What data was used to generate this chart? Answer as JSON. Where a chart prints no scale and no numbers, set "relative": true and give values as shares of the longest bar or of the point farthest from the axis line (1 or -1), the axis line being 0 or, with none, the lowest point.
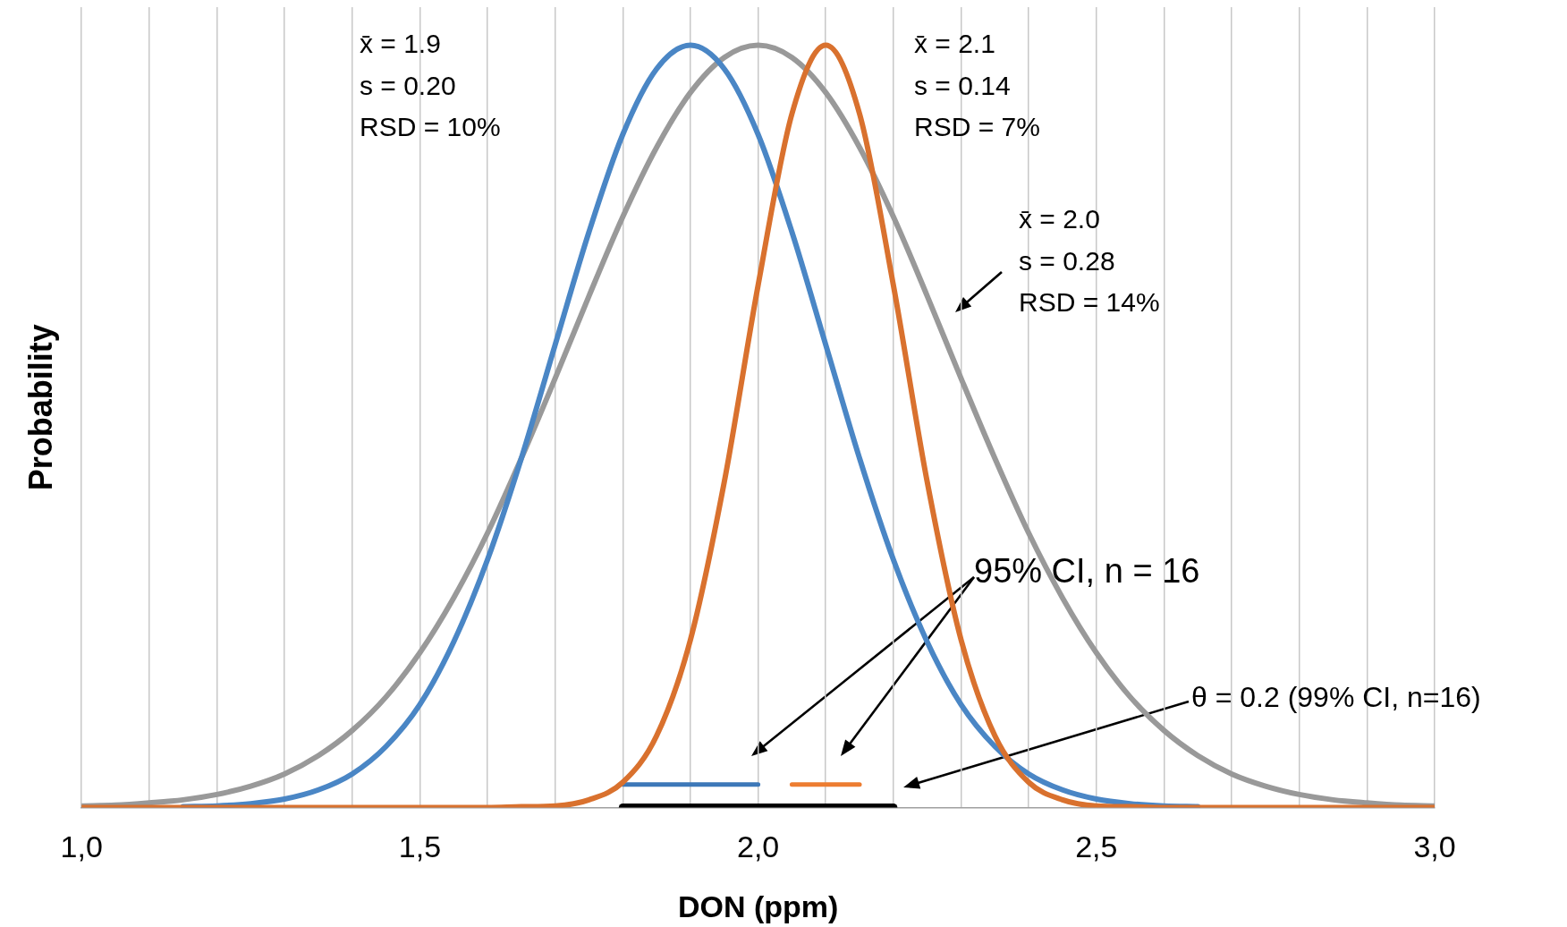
{
  "chart_data": {
    "type": "line",
    "relative": true,
    "xlabel": "DON (ppm)",
    "ylabel": "Probability",
    "xlim": [
      1,
      3
    ],
    "xticks": [
      {
        "value": 1,
        "label": "1,0"
      },
      {
        "value": 1.1,
        "label": null
      },
      {
        "value": 1.2,
        "label": null
      },
      {
        "value": 1.3,
        "label": null
      },
      {
        "value": 1.4,
        "label": null
      },
      {
        "value": 1.5,
        "label": "1,5"
      },
      {
        "value": 1.6,
        "label": null
      },
      {
        "value": 1.7,
        "label": null
      },
      {
        "value": 1.8,
        "label": null
      },
      {
        "value": 1.9,
        "label": null
      },
      {
        "value": 2,
        "label": "2,0"
      },
      {
        "value": 2.1,
        "label": null
      },
      {
        "value": 2.2,
        "label": null
      },
      {
        "value": 2.3,
        "label": null
      },
      {
        "value": 2.4,
        "label": null
      },
      {
        "value": 2.5,
        "label": "2,5"
      },
      {
        "value": 2.6,
        "label": null
      },
      {
        "value": 2.7,
        "label": null
      },
      {
        "value": 2.8,
        "label": null
      },
      {
        "value": 2.9,
        "label": null
      },
      {
        "value": 3,
        "label": "3,0"
      }
    ],
    "grid": "x",
    "legend": false,
    "line_style": "solid",
    "x": [
      1,
      1.05,
      1.1,
      1.15,
      1.2,
      1.25,
      1.3,
      1.35,
      1.4,
      1.45,
      1.5,
      1.55,
      1.6,
      1.65,
      1.7,
      1.75,
      1.8,
      1.85,
      1.9,
      1.95,
      2,
      2.05,
      2.1,
      2.15,
      2.2,
      2.25,
      2.3,
      2.35,
      2.4,
      2.45,
      2.5,
      2.55,
      2.6,
      2.65,
      2.7,
      2.75,
      2.8,
      2.85,
      2.9,
      2.95,
      3
    ],
    "series": [
      {
        "color": "#4a86c5",
        "values": [
          null,
          null,
          null,
          0.001,
          0.002,
          0.005,
          0.011,
          0.023,
          0.044,
          0.08,
          0.135,
          0.217,
          0.325,
          0.458,
          0.607,
          0.755,
          0.883,
          0.969,
          1,
          0.969,
          0.883,
          0.755,
          0.607,
          0.458,
          0.325,
          0.217,
          0.135,
          0.08,
          0.044,
          0.023,
          0.011,
          0.005,
          0.002,
          0.001,
          null,
          null,
          null,
          null,
          null,
          null,
          null
        ]
      },
      {
        "color": "#d9712e",
        "values": [
          0,
          0,
          0,
          0,
          0,
          0,
          0,
          0,
          0,
          0,
          0,
          0,
          0,
          0.001,
          0.002,
          0.01,
          0.033,
          0.094,
          0.22,
          0.427,
          0.685,
          0.91,
          1,
          0.91,
          0.685,
          0.427,
          0.22,
          0.094,
          0.033,
          0.01,
          0.002,
          0.001,
          0,
          0,
          0,
          0,
          0,
          0,
          0,
          0,
          0
        ]
      },
      {
        "color": "#999999",
        "values": [
          0.002,
          0.003,
          0.006,
          0.01,
          0.017,
          0.028,
          0.044,
          0.068,
          0.101,
          0.145,
          0.203,
          0.275,
          0.36,
          0.458,
          0.563,
          0.671,
          0.775,
          0.866,
          0.938,
          0.984,
          1,
          0.984,
          0.938,
          0.866,
          0.775,
          0.671,
          0.563,
          0.458,
          0.36,
          0.275,
          0.203,
          0.145,
          0.101,
          0.068,
          0.044,
          0.028,
          0.017,
          0.01,
          0.006,
          0.003,
          0.002
        ]
      },
      {
        "color": "#3d78b8",
        "x": [
          1.8,
          2.0
        ],
        "values": [
          0.03,
          0.03
        ]
      },
      {
        "color": "#ed7d31",
        "x": [
          2.05,
          2.15
        ],
        "values": [
          0.03,
          0.03
        ]
      },
      {
        "color": "#000000",
        "x": [
          1.8,
          2.2
        ],
        "values": [
          0,
          0
        ]
      }
    ],
    "annotations": [
      "x̄ = 1.9\ns = 0.20\nRSD = 10%",
      "x̄ = 2.1\ns = 0.14\nRSD = 7%",
      "x̄ = 2.0\ns = 0.28\nRSD = 14%",
      "95% CI, n = 16",
      "θ = 0.2 (99% CI, n=16)"
    ]
  }
}
